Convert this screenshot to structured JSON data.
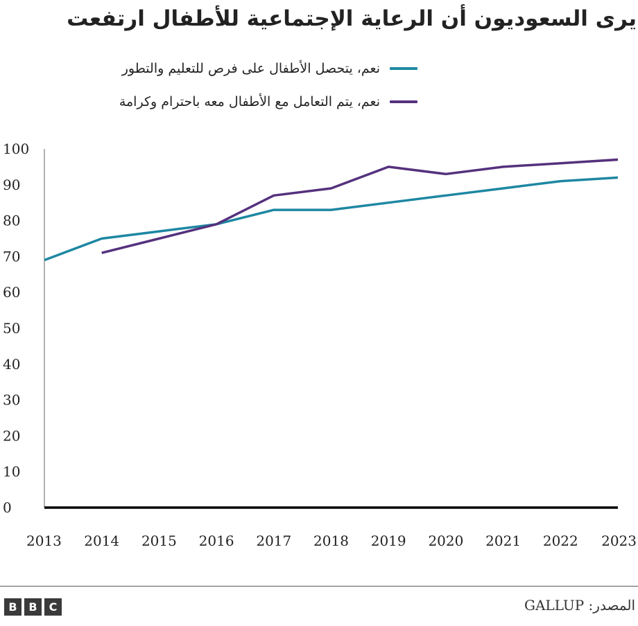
{
  "chart_data": {
    "type": "line",
    "title": "يرى السعوديون أن الرعاية الإجتماعية للأطفال ارتفعت",
    "xlabel": "",
    "ylabel": "",
    "x": [
      2013,
      2014,
      2015,
      2016,
      2017,
      2018,
      2019,
      2020,
      2021,
      2022,
      2023
    ],
    "x_tick_labels": [
      "2013",
      "2014",
      "2015",
      "2016",
      "2017",
      "2018",
      "2019",
      "2020",
      "2021",
      "2022",
      "2023"
    ],
    "ylim": [
      0,
      100
    ],
    "y_ticks": [
      0,
      10,
      20,
      30,
      40,
      50,
      60,
      70,
      80,
      90,
      100
    ],
    "y_tick_labels": [
      "0",
      "10",
      "20",
      "30",
      "40",
      "50",
      "60",
      "70",
      "80",
      "90",
      "100"
    ],
    "grid": false,
    "legend_position": "top-right",
    "series": [
      {
        "name": "نعم، يتحصل الأطفال على فرص للتعليم والتطور",
        "color": "#1e87a2",
        "values": [
          69,
          75,
          77,
          79,
          83,
          83,
          85,
          87,
          89,
          91,
          92
        ]
      },
      {
        "name": "نعم، يتم التعامل مع الأطفال معه باحترام وكرامة",
        "color": "#55317d",
        "values": [
          null,
          71,
          75,
          79,
          87,
          89,
          95,
          93,
          95,
          96,
          97
        ]
      }
    ]
  },
  "footer": {
    "source": "المصدر: GALLUP",
    "logo_letters": [
      "B",
      "B",
      "C"
    ]
  }
}
